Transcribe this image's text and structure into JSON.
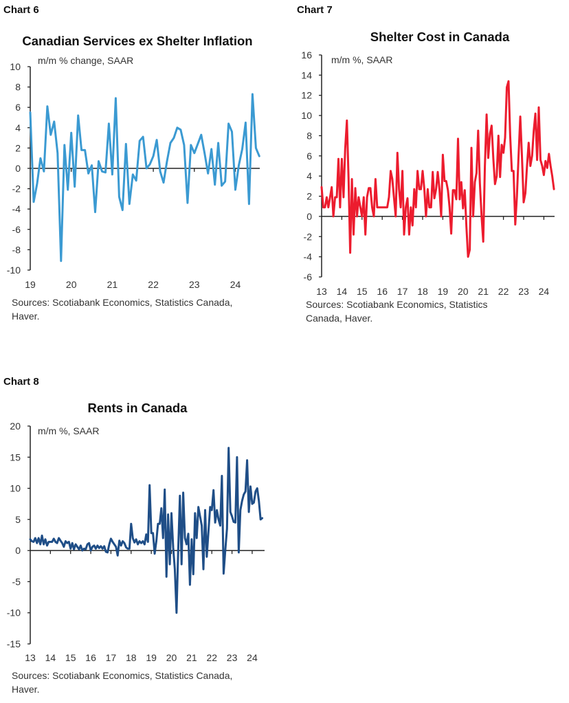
{
  "chart_data": [
    {
      "type": "line",
      "label": "Chart 6",
      "title": "Canadian Services ex Shelter Inflation",
      "ylabel": "m/m % change, SAAR",
      "ylim": [
        -10,
        10
      ],
      "yticks": [
        "10",
        "8",
        "6",
        "4",
        "2",
        "0",
        "-2",
        "-4",
        "-6",
        "-8",
        "-10"
      ],
      "xticks": [
        "19",
        "20",
        "21",
        "22",
        "23",
        "24"
      ],
      "x_start": "Jan 2019",
      "frequency": "monthly",
      "color": "#3b9ad2",
      "sources": [
        "Sources: Scotiabank Economics, Statistics Canada,",
        "Haver."
      ],
      "values": [
        5.5,
        -3.3,
        -1.5,
        1,
        -0.3,
        6.1,
        3.3,
        4.6,
        1.5,
        -9.1,
        2.3,
        -2.1,
        3.5,
        -1.8,
        5.2,
        1.8,
        1.8,
        -0.5,
        0.3,
        -4.3,
        0.7,
        -0.3,
        -0.4,
        4.4,
        -0.6,
        6.9,
        -2.8,
        -4.1,
        2.4,
        -3.5,
        -0.6,
        -1.2,
        2.7,
        3.1,
        0,
        0.4,
        1.2,
        2.8,
        -0.3,
        -1.4,
        0.7,
        2.5,
        3,
        4,
        3.8,
        2.3,
        -3.4,
        2.3,
        1.5,
        2.4,
        3.3,
        1.5,
        -0.5,
        1.9,
        -1.6,
        2.5,
        -1.7,
        -1.3,
        4.4,
        3.6,
        -2.1,
        0.3,
        1.9,
        4.5,
        -3.5,
        7.3,
        2,
        1.2
      ]
    },
    {
      "type": "line",
      "label": "Chart 7",
      "title": "Shelter Cost in Canada",
      "ylabel": "m/m %, SAAR",
      "ylim": [
        -6,
        16
      ],
      "yticks": [
        "16",
        "14",
        "12",
        "10",
        "8",
        "6",
        "4",
        "2",
        "0",
        "-2",
        "-4",
        "-6"
      ],
      "xticks": [
        "13",
        "14",
        "15",
        "16",
        "17",
        "18",
        "19",
        "20",
        "21",
        "22",
        "23",
        "24"
      ],
      "x_start": "Jan 2013",
      "frequency": "monthly",
      "color": "#ec1c2e",
      "sources": [
        "Sources: Scotiabank Economics, Statistics",
        "Canada, Haver."
      ],
      "values": [
        2.9,
        0.9,
        0.9,
        1.9,
        0.9,
        1.9,
        2.9,
        0,
        1.9,
        1.9,
        5.7,
        0.9,
        5.7,
        1.9,
        6.7,
        9.5,
        3.8,
        -3.6,
        3.7,
        -1.8,
        2.8,
        0,
        1.9,
        0.9,
        0,
        1.9,
        -1.8,
        1.9,
        2.8,
        2.8,
        0.9,
        0,
        3.7,
        0.9,
        0.9,
        0.9,
        0.9,
        0.9,
        0.9,
        0.9,
        1.9,
        4.5,
        3.7,
        1.8,
        0,
        6.3,
        2.7,
        0.9,
        4.5,
        -1.8,
        0.9,
        1.8,
        -1.8,
        0.9,
        -0.9,
        2.7,
        0.9,
        4.5,
        2.7,
        2.7,
        4.5,
        2.7,
        0,
        2.7,
        0.9,
        0.9,
        4.4,
        1.8,
        2.7,
        4.4,
        2.7,
        0,
        6.1,
        3.5,
        3.5,
        2.6,
        0.9,
        -1.7,
        2.6,
        2.6,
        1.7,
        7.7,
        1.7,
        3.4,
        0.8,
        2.6,
        -1,
        -4,
        -3.3,
        6.8,
        0,
        3.4,
        4.3,
        8.5,
        3.3,
        0,
        -2.5,
        5,
        10.1,
        5.8,
        8.2,
        9,
        5.7,
        3.2,
        4,
        8,
        3.9,
        7.1,
        6.3,
        7.8,
        12.8,
        13.4,
        8,
        4.5,
        4.5,
        -0.8,
        2,
        6,
        9.9,
        6,
        1.4,
        2.3,
        5,
        7.3,
        5,
        6,
        8.5,
        10.2,
        5.6,
        10.8,
        5.6,
        5,
        4.1,
        5.5,
        4.8,
        6.2,
        5,
        4,
        2.7
      ]
    },
    {
      "type": "line",
      "label": "Chart 8",
      "title": "Rents in Canada",
      "ylabel": "m/m %, SAAR",
      "ylim": [
        -15,
        20
      ],
      "yticks": [
        "20",
        "15",
        "10",
        "5",
        "0",
        "-5",
        "-10",
        "-15"
      ],
      "xticks": [
        "13",
        "14",
        "15",
        "16",
        "17",
        "18",
        "19",
        "20",
        "21",
        "22",
        "23",
        "24"
      ],
      "x_start": "Jan 2013",
      "frequency": "monthly",
      "color": "#1f4e87",
      "sources": [
        "Sources: Scotiabank Economics, Statistics Canada,",
        "Haver."
      ],
      "values": [
        1.8,
        1.5,
        1.4,
        2,
        1.2,
        2,
        1,
        2.4,
        1,
        1.8,
        0.8,
        1.4,
        1.4,
        1.4,
        1.9,
        1.4,
        1.2,
        2,
        1.6,
        1.2,
        0.6,
        1.5,
        1.2,
        1.4,
        0.3,
        1.2,
        0.2,
        1,
        0.6,
        0.2,
        0.8,
        0,
        0.3,
        0.2,
        1,
        1.2,
        0,
        0.6,
        0.8,
        0.3,
        0.8,
        0.4,
        0.7,
        0.3,
        0.7,
        -0.2,
        -0.3,
        1,
        1.9,
        1.4,
        1,
        0.6,
        -0.8,
        1.6,
        0.8,
        1.5,
        1.2,
        0.5,
        0.3,
        0.3,
        4.3,
        2,
        1.3,
        1.8,
        1,
        1.5,
        1.2,
        1.5,
        1,
        2.6,
        1.4,
        10.5,
        2.8,
        2.8,
        -0.5,
        1.5,
        4.3,
        4.3,
        6.8,
        2,
        9.8,
        -4.2,
        5.8,
        -2.2,
        6,
        0.5,
        -3,
        -10,
        0,
        8.8,
        -2.2,
        9.3,
        2,
        1,
        2.7,
        -5.5,
        1.8,
        -3.8,
        6,
        2,
        7,
        5.5,
        4,
        -3,
        6.5,
        -1,
        3,
        7,
        6.5,
        9.7,
        4.5,
        6.5,
        5,
        4,
        12,
        -3.7,
        0,
        3.5,
        16.5,
        6.2,
        5.5,
        4.6,
        4.5,
        15,
        -0.3,
        6.5,
        8,
        9,
        9.5,
        14.5,
        6.2,
        10.3,
        7.5,
        7.7,
        9.5,
        10,
        8,
        5,
        5.2
      ]
    }
  ]
}
